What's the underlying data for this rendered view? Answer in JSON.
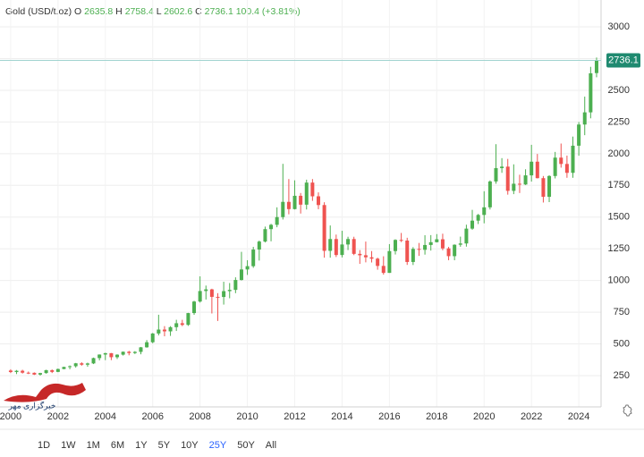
{
  "chart_data": {
    "type": "candlestick",
    "title": "Gold (USD/t.oz)",
    "ohlc_labels": [
      "O",
      "H",
      "L",
      "C"
    ],
    "change": "100.4 (+3.81%)",
    "watermark": "خبرگزاری مهر",
    "up_color": "#4caf50",
    "down_color": "#ef5350",
    "grid": true,
    "x": [
      2000,
      2000.25,
      2000.5,
      2000.75,
      2001,
      2001.25,
      2001.5,
      2001.75,
      2002,
      2002.25,
      2002.5,
      2002.75,
      2003,
      2003.25,
      2003.5,
      2003.75,
      2004,
      2004.25,
      2004.5,
      2004.75,
      2005,
      2005.25,
      2005.5,
      2005.75,
      2006,
      2006.25,
      2006.5,
      2006.75,
      2007,
      2007.25,
      2007.5,
      2007.75,
      2008,
      2008.25,
      2008.5,
      2008.75,
      2009,
      2009.25,
      2009.5,
      2009.75,
      2010,
      2010.25,
      2010.5,
      2010.75,
      2011,
      2011.25,
      2011.5,
      2011.75,
      2012,
      2012.25,
      2012.5,
      2012.75,
      2013,
      2013.25,
      2013.5,
      2013.75,
      2014,
      2014.25,
      2014.5,
      2014.75,
      2015,
      2015.25,
      2015.5,
      2015.75,
      2016,
      2016.25,
      2016.5,
      2016.75,
      2017,
      2017.25,
      2017.5,
      2017.75,
      2018,
      2018.25,
      2018.5,
      2018.75,
      2019,
      2019.25,
      2019.5,
      2019.75,
      2020,
      2020.25,
      2020.5,
      2020.75,
      2021,
      2021.25,
      2021.5,
      2021.75,
      2022,
      2022.25,
      2022.5,
      2022.75,
      2023,
      2023.25,
      2023.5,
      2023.75,
      2024,
      2024.25,
      2024.5,
      2024.75
    ],
    "open": [
      290,
      278,
      288,
      273,
      272,
      258,
      270,
      293,
      279,
      302,
      318,
      324,
      347,
      336,
      346,
      388,
      416,
      427,
      395,
      415,
      438,
      428,
      437,
      473,
      513,
      582,
      613,
      599,
      632,
      663,
      650,
      743,
      834,
      917,
      930,
      871,
      870,
      916,
      926,
      1004,
      1087,
      1113,
      1244,
      1307,
      1405,
      1439,
      1500,
      1620,
      1563,
      1668,
      1598,
      1772,
      1664,
      1595,
      1234,
      1327,
      1201,
      1284,
      1327,
      1210,
      1199,
      1183,
      1172,
      1115,
      1060,
      1232,
      1320,
      1315,
      1146,
      1249,
      1242,
      1280,
      1302,
      1325,
      1253,
      1192,
      1282,
      1292,
      1409,
      1472,
      1517,
      1577,
      1781,
      1886,
      1898,
      1707,
      1763,
      1757,
      1829,
      1937,
      1807,
      1660,
      1824,
      1969,
      1919,
      1849,
      2063,
      2230,
      2326,
      2635.8
    ],
    "high": [
      300,
      294,
      296,
      282,
      275,
      272,
      296,
      298,
      305,
      320,
      330,
      350,
      355,
      352,
      392,
      417,
      430,
      428,
      418,
      440,
      445,
      443,
      476,
      530,
      586,
      730,
      640,
      640,
      690,
      690,
      745,
      840,
      1033,
      960,
      935,
      900,
      990,
      980,
      1025,
      1226,
      1160,
      1265,
      1315,
      1425,
      1447,
      1577,
      1920,
      1800,
      1790,
      1690,
      1795,
      1800,
      1695,
      1617,
      1434,
      1362,
      1392,
      1345,
      1345,
      1240,
      1307,
      1232,
      1180,
      1191,
      1287,
      1325,
      1375,
      1337,
      1263,
      1296,
      1357,
      1358,
      1366,
      1369,
      1265,
      1285,
      1346,
      1440,
      1557,
      1525,
      1704,
      1789,
      2075,
      1965,
      1959,
      1916,
      1834,
      1877,
      2070,
      1998,
      1824,
      1830,
      2014,
      2080,
      1985,
      2135,
      2250,
      2450,
      2685,
      2758.4
    ],
    "low": [
      270,
      262,
      266,
      262,
      255,
      250,
      265,
      270,
      277,
      300,
      300,
      313,
      328,
      320,
      341,
      370,
      372,
      372,
      381,
      408,
      410,
      420,
      418,
      470,
      505,
      567,
      560,
      563,
      602,
      640,
      642,
      729,
      826,
      850,
      740,
      681,
      810,
      860,
      900,
      1000,
      1044,
      1100,
      1157,
      1300,
      1309,
      1420,
      1481,
      1522,
      1560,
      1528,
      1560,
      1628,
      1562,
      1180,
      1180,
      1185,
      1182,
      1240,
      1200,
      1131,
      1143,
      1142,
      1085,
      1046,
      1060,
      1205,
      1303,
      1123,
      1122,
      1194,
      1204,
      1236,
      1300,
      1238,
      1160,
      1160,
      1266,
      1267,
      1400,
      1445,
      1451,
      1560,
      1763,
      1849,
      1677,
      1681,
      1690,
      1753,
      1780,
      1805,
      1615,
      1618,
      1805,
      1890,
      1810,
      1810,
      1984,
      2146,
      2279,
      2602.6
    ],
    "close": [
      278,
      288,
      273,
      272,
      258,
      270,
      293,
      279,
      302,
      318,
      324,
      347,
      336,
      346,
      388,
      416,
      427,
      395,
      415,
      438,
      428,
      437,
      473,
      513,
      582,
      613,
      599,
      632,
      663,
      650,
      743,
      834,
      917,
      930,
      871,
      870,
      916,
      926,
      1004,
      1087,
      1113,
      1244,
      1307,
      1405,
      1439,
      1500,
      1620,
      1563,
      1668,
      1598,
      1772,
      1664,
      1595,
      1234,
      1327,
      1201,
      1284,
      1327,
      1210,
      1199,
      1183,
      1172,
      1115,
      1060,
      1232,
      1320,
      1315,
      1146,
      1249,
      1242,
      1280,
      1302,
      1325,
      1253,
      1192,
      1282,
      1292,
      1409,
      1472,
      1517,
      1577,
      1781,
      1886,
      1898,
      1707,
      1763,
      1757,
      1829,
      1937,
      1807,
      1660,
      1824,
      1969,
      1919,
      1849,
      2063,
      2230,
      2326,
      2634,
      2736.1
    ],
    "xlim": [
      1999.55,
      2024.94
    ],
    "xticks": [
      2000,
      2002,
      2004,
      2006,
      2008,
      2010,
      2012,
      2014,
      2016,
      2018,
      2020,
      2022,
      2024
    ],
    "ylim": [
      3,
      3212
    ],
    "yticks": [
      250,
      500,
      750,
      1000,
      1250,
      1500,
      1750,
      2000,
      2250,
      2500,
      2750,
      3000
    ],
    "ranges": [
      "1D",
      "1W",
      "1M",
      "6M",
      "1Y",
      "5Y",
      "10Y",
      "25Y",
      "50Y",
      "All"
    ],
    "active_range": "25Y"
  }
}
